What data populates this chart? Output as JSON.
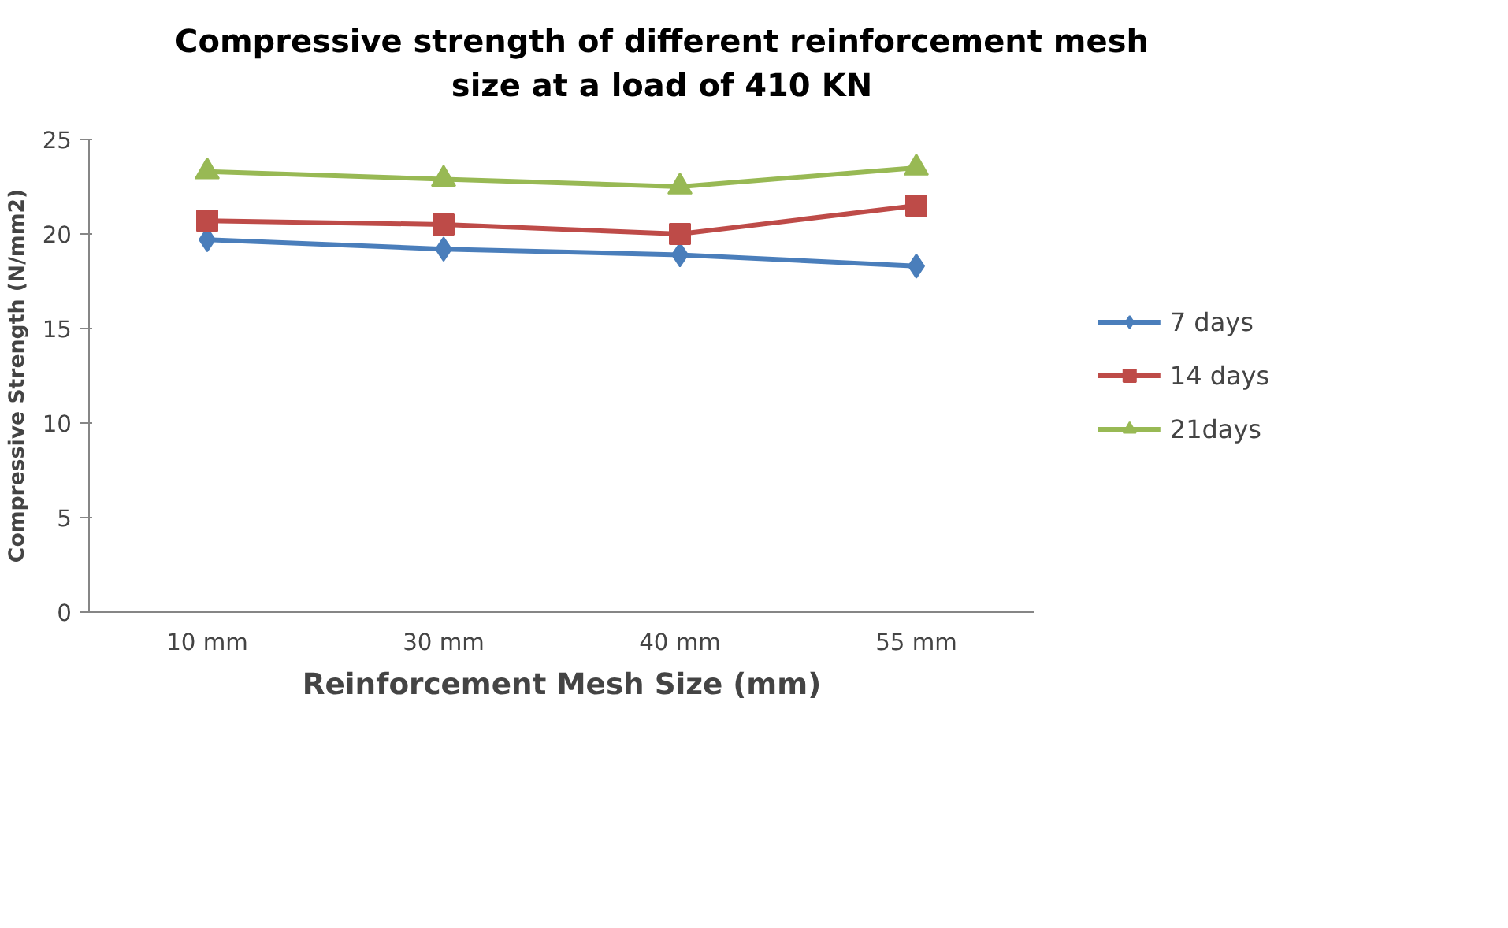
{
  "chart_data": {
    "type": "line",
    "title": "Compressive strength of different reinforcement mesh\nsize at a load of 410 KN",
    "xlabel": "Reinforcement Mesh Size (mm)",
    "ylabel": "Compressive Strength (N/mm2)",
    "categories": [
      "10 mm",
      "30 mm",
      "40 mm",
      "55 mm"
    ],
    "series": [
      {
        "name": "7 days",
        "color": "#4a7ebb",
        "marker": "diamond",
        "values": [
          19.7,
          19.2,
          18.9,
          18.3
        ]
      },
      {
        "name": "14 days",
        "color": "#be4b48",
        "marker": "square",
        "values": [
          20.7,
          20.5,
          20.0,
          21.5
        ]
      },
      {
        "name": "21days",
        "color": "#98b954",
        "marker": "triangle",
        "values": [
          23.3,
          22.9,
          22.5,
          23.5
        ]
      }
    ],
    "ylim": [
      0,
      25
    ],
    "yticks": [
      0,
      5,
      10,
      15,
      20,
      25
    ],
    "grid": false,
    "legend": "right",
    "line_style": "solid"
  }
}
